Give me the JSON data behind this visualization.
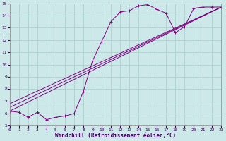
{
  "xlabel": "Windchill (Refroidissement éolien,°C)",
  "bg_color": "#cce8e8",
  "grid_color": "#aacccc",
  "line_color": "#800080",
  "xmin": 0,
  "xmax": 23,
  "ymin": 5,
  "ymax": 15,
  "xticks": [
    0,
    1,
    2,
    3,
    4,
    5,
    6,
    7,
    8,
    9,
    10,
    11,
    12,
    13,
    14,
    15,
    16,
    17,
    18,
    19,
    20,
    21,
    22,
    23
  ],
  "yticks": [
    5,
    6,
    7,
    8,
    9,
    10,
    11,
    12,
    13,
    14,
    15
  ],
  "series1_x": [
    0,
    1,
    2,
    3,
    4,
    5,
    6,
    7,
    8,
    9,
    10,
    11,
    12,
    13,
    14,
    15,
    16,
    17,
    18,
    19,
    20,
    21,
    22,
    23
  ],
  "series1_y": [
    6.2,
    6.1,
    5.7,
    6.1,
    5.5,
    5.7,
    5.8,
    6.0,
    7.8,
    10.3,
    11.9,
    13.5,
    14.3,
    14.4,
    14.8,
    14.9,
    14.5,
    14.2,
    12.6,
    13.1,
    14.6,
    14.7,
    14.7,
    14.7
  ],
  "series2_x": [
    0,
    23
  ],
  "series2_y": [
    6.2,
    14.7
  ],
  "series3_x": [
    0,
    23
  ],
  "series3_y": [
    6.5,
    14.7
  ],
  "series4_x": [
    0,
    23
  ],
  "series4_y": [
    6.8,
    14.7
  ]
}
